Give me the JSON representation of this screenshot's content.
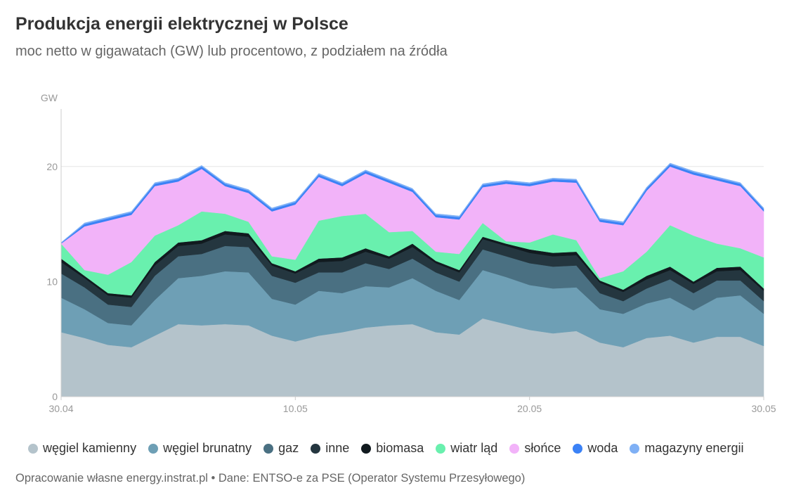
{
  "title": "Produkcja energii elektrycznej w Polsce",
  "subtitle": "moc netto w gigawatach (GW) lub procentowo, z podziałem na źródła",
  "footer": "Opracowanie własne energy.instrat.pl • Dane: ENTSO-e za PSE (Operator Systemu Przesyłowego)",
  "chart_data": {
    "type": "area",
    "stacked": true,
    "ylabel": "GW",
    "ylim": [
      0,
      25
    ],
    "yticks": [
      0,
      10,
      20
    ],
    "xlim": [
      0,
      30
    ],
    "xticks": [
      {
        "x": 0,
        "label": "30.04"
      },
      {
        "x": 10,
        "label": "10.05"
      },
      {
        "x": 20,
        "label": "20.05"
      },
      {
        "x": 30,
        "label": "30.05"
      }
    ],
    "grid": true,
    "legend_position": "bottom",
    "x": [
      0,
      1,
      2,
      3,
      4,
      5,
      6,
      7,
      8,
      9,
      10,
      11,
      12,
      13,
      14,
      15,
      16,
      17,
      18,
      19,
      20,
      21,
      22,
      23,
      24,
      25,
      26,
      27,
      28,
      29,
      30
    ],
    "series": [
      {
        "name": "węgiel kamienny",
        "color": "#b4c3cb",
        "values": [
          5.6,
          5.1,
          4.5,
          4.3,
          5.3,
          6.3,
          6.2,
          6.3,
          6.2,
          5.3,
          4.8,
          5.3,
          5.6,
          6.0,
          6.2,
          6.3,
          5.6,
          5.4,
          6.8,
          6.3,
          5.8,
          5.5,
          5.7,
          4.7,
          4.3,
          5.1,
          5.3,
          4.7,
          5.2,
          5.2,
          4.4
        ]
      },
      {
        "name": "węgiel brunatny",
        "color": "#6e9fb5",
        "values": [
          3.0,
          2.5,
          1.9,
          1.9,
          3.1,
          4.0,
          4.3,
          4.6,
          4.6,
          3.2,
          3.2,
          3.9,
          3.4,
          3.6,
          3.3,
          4.0,
          3.6,
          3.0,
          4.2,
          4.1,
          3.9,
          3.9,
          3.8,
          2.9,
          2.9,
          3.0,
          3.3,
          2.8,
          3.4,
          3.6,
          2.8
        ]
      },
      {
        "name": "gaz",
        "color": "#4a7082",
        "values": [
          2.1,
          1.9,
          1.6,
          1.6,
          2.1,
          1.9,
          1.9,
          2.2,
          2.2,
          2.0,
          1.9,
          1.6,
          1.8,
          2.0,
          1.6,
          1.7,
          1.6,
          1.6,
          1.8,
          1.8,
          1.9,
          1.9,
          1.9,
          1.4,
          1.1,
          1.3,
          1.6,
          1.5,
          1.5,
          1.3,
          1.1
        ]
      },
      {
        "name": "inne",
        "color": "#24363f",
        "values": [
          1.0,
          0.8,
          0.8,
          0.8,
          0.9,
          0.9,
          0.9,
          1.0,
          0.9,
          0.9,
          0.8,
          0.9,
          1.0,
          1.0,
          0.9,
          1.0,
          0.8,
          0.8,
          0.9,
          0.9,
          0.9,
          0.9,
          0.9,
          0.9,
          0.8,
          0.8,
          0.8,
          0.8,
          0.8,
          0.9,
          0.9
        ]
      },
      {
        "name": "biomasa",
        "color": "#111a1f",
        "values": [
          0.3,
          0.2,
          0.2,
          0.2,
          0.3,
          0.3,
          0.3,
          0.3,
          0.3,
          0.2,
          0.2,
          0.3,
          0.3,
          0.3,
          0.2,
          0.3,
          0.2,
          0.2,
          0.2,
          0.2,
          0.3,
          0.3,
          0.3,
          0.2,
          0.2,
          0.3,
          0.3,
          0.2,
          0.3,
          0.3,
          0.2
        ]
      },
      {
        "name": "wiatr ląd",
        "color": "#69f0ae",
        "values": [
          1.3,
          0.5,
          1.6,
          2.9,
          2.3,
          1.5,
          2.5,
          1.5,
          1.0,
          0.6,
          1.0,
          3.3,
          3.6,
          3.0,
          2.1,
          1.1,
          0.8,
          1.4,
          1.2,
          0.2,
          0.6,
          1.6,
          1.0,
          0.2,
          1.6,
          2.1,
          3.6,
          4.0,
          2.1,
          1.6,
          2.7
        ]
      },
      {
        "name": "słońce",
        "color": "#f2b3f9",
        "values": [
          0.0,
          3.8,
          4.7,
          4.1,
          4.3,
          3.8,
          3.7,
          2.4,
          2.5,
          3.9,
          4.8,
          3.8,
          2.6,
          3.5,
          4.3,
          3.4,
          3.0,
          3.0,
          3.1,
          5.0,
          4.9,
          4.6,
          5.0,
          4.9,
          4.0,
          5.3,
          5.1,
          5.3,
          5.5,
          5.4,
          4.0
        ]
      },
      {
        "name": "woda",
        "color": "#3b82f6",
        "values": [
          0.05,
          0.2,
          0.2,
          0.2,
          0.2,
          0.2,
          0.2,
          0.2,
          0.2,
          0.2,
          0.2,
          0.2,
          0.2,
          0.2,
          0.2,
          0.2,
          0.2,
          0.2,
          0.2,
          0.2,
          0.2,
          0.2,
          0.2,
          0.2,
          0.2,
          0.2,
          0.2,
          0.2,
          0.2,
          0.2,
          0.2
        ]
      },
      {
        "name": "magazyny energii",
        "color": "#7fb0f5",
        "values": [
          0.05,
          0.1,
          0.1,
          0.1,
          0.1,
          0.1,
          0.1,
          0.1,
          0.1,
          0.1,
          0.1,
          0.1,
          0.1,
          0.1,
          0.1,
          0.1,
          0.1,
          0.1,
          0.1,
          0.1,
          0.1,
          0.1,
          0.1,
          0.1,
          0.1,
          0.1,
          0.1,
          0.1,
          0.1,
          0.1,
          0.1
        ]
      }
    ]
  }
}
